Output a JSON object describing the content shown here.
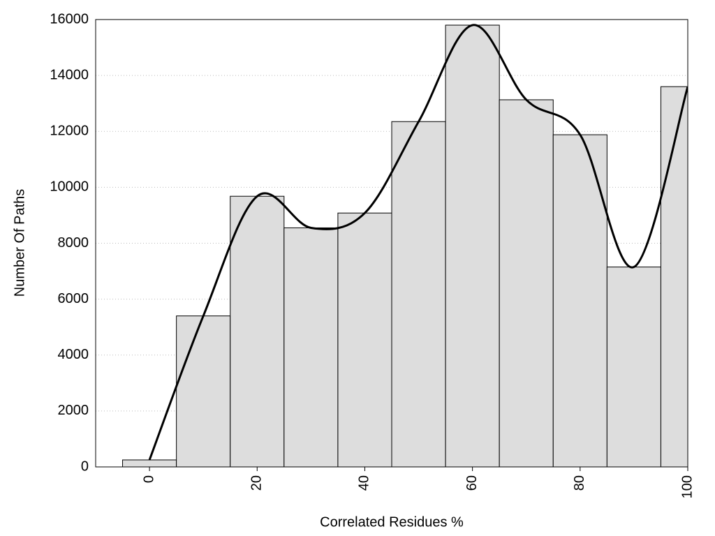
{
  "chart_data": {
    "type": "bar",
    "x_label": "Correlated Residues %",
    "y_label": "Number Of Paths",
    "x": [
      0,
      10,
      20,
      30,
      40,
      50,
      60,
      70,
      80,
      90,
      100
    ],
    "values": [
      250,
      5400,
      9680,
      8550,
      9080,
      12350,
      15800,
      13130,
      11880,
      7150,
      13600
    ],
    "bar_width": 10,
    "color": "#dddddd",
    "line": true,
    "line_color": "#000000",
    "xlim": [
      -10,
      100
    ],
    "xticks": [
      0,
      20,
      40,
      60,
      80,
      100
    ],
    "ylim": [
      0,
      16000
    ],
    "yticks": [
      0,
      2000,
      4000,
      6000,
      8000,
      10000,
      12000,
      14000,
      16000
    ],
    "grid": true
  }
}
